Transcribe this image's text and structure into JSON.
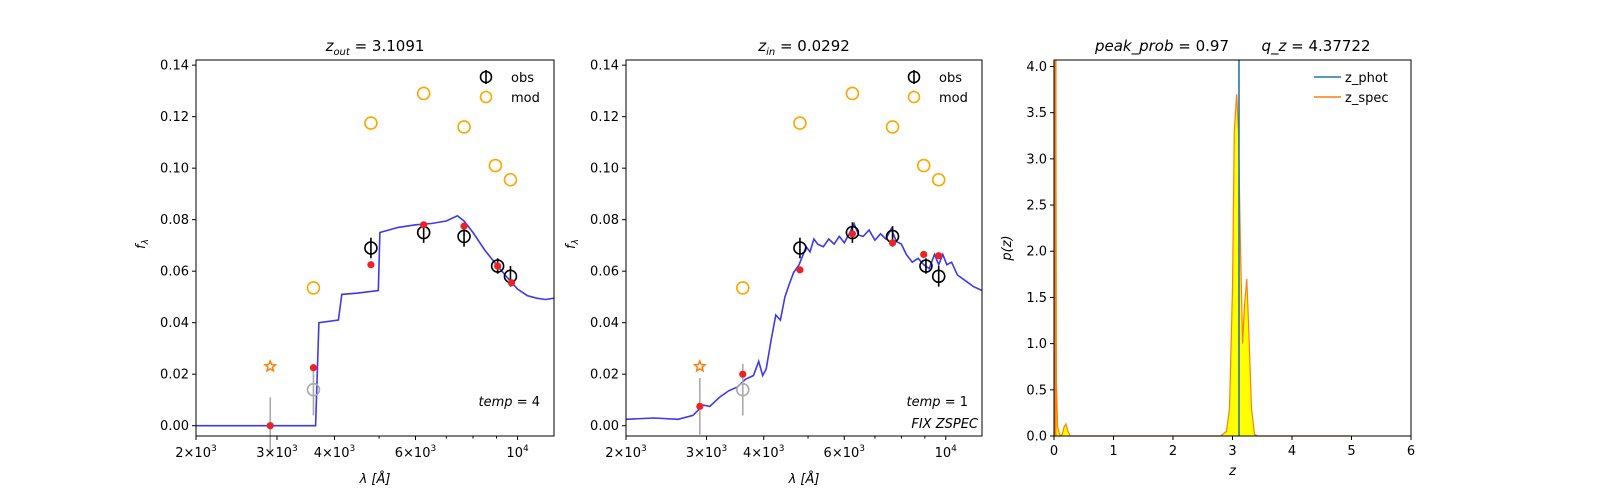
{
  "chart_data": [
    {
      "type": "scatter",
      "title": "z_out = 3.1091",
      "title_main": "z",
      "title_sub": "out",
      "title_rest": " = 3.1091",
      "xlabel": "λ [Å]",
      "ylabel": "f_λ",
      "ylabel_main": "f",
      "ylabel_sub": "λ",
      "xscale": "log",
      "xlim": [
        2000,
        12000
      ],
      "ylim": [
        -0.004,
        0.142
      ],
      "grid": false,
      "legend_position": "top-right",
      "legend": [
        {
          "label": "obs",
          "marker": "open-circle-errorbar",
          "color": "#000000"
        },
        {
          "label": "mod",
          "marker": "open-circle",
          "color": "#ffa500"
        }
      ],
      "x_tick_labels": [
        {
          "value": 2000,
          "base": "2×10",
          "exp": "3"
        },
        {
          "value": 3000,
          "base": "3×10",
          "exp": "3"
        },
        {
          "value": 4000,
          "base": "4×10",
          "exp": "3"
        },
        {
          "value": 6000,
          "base": "6×10",
          "exp": "3"
        },
        {
          "value": 10000,
          "base": "10",
          "exp": "4"
        }
      ],
      "y_ticks": [
        0.0,
        0.02,
        0.04,
        0.06,
        0.08,
        0.1,
        0.12,
        0.14
      ],
      "y_tick_labels": [
        "0.00",
        "0.02",
        "0.04",
        "0.06",
        "0.08",
        "0.10",
        "0.12",
        "0.14"
      ],
      "annotation": "temp = 4",
      "annotation_main": "temp",
      "annotation_rest": " = 4",
      "obs": [
        {
          "x": 4800,
          "y": 0.069,
          "err": 0.004
        },
        {
          "x": 6250,
          "y": 0.075,
          "err": 0.004
        },
        {
          "x": 7650,
          "y": 0.0735,
          "err": 0.004
        },
        {
          "x": 9050,
          "y": 0.062,
          "err": 0.003
        },
        {
          "x": 9650,
          "y": 0.058,
          "err": 0.004
        }
      ],
      "obs_gray": [
        {
          "x": 3600,
          "y": 0.014,
          "err": 0.01
        }
      ],
      "gray_errorbar": [
        {
          "x": 2900,
          "y": 0.0,
          "err": 0.011
        }
      ],
      "mod": [
        {
          "x": 3600,
          "y": 0.0535
        },
        {
          "x": 4800,
          "y": 0.1175
        },
        {
          "x": 6250,
          "y": 0.129
        },
        {
          "x": 7650,
          "y": 0.116
        },
        {
          "x": 8950,
          "y": 0.101
        },
        {
          "x": 9650,
          "y": 0.0955
        }
      ],
      "star": [
        {
          "x": 2900,
          "y": 0.023
        }
      ],
      "red": [
        {
          "x": 2900,
          "y": 0.0
        },
        {
          "x": 3600,
          "y": 0.0225
        },
        {
          "x": 4800,
          "y": 0.0625
        },
        {
          "x": 6250,
          "y": 0.078
        },
        {
          "x": 7650,
          "y": 0.0775
        },
        {
          "x": 9050,
          "y": 0.062
        },
        {
          "x": 9700,
          "y": 0.0555
        }
      ],
      "sed": [
        [
          2000,
          0.0
        ],
        [
          3640,
          0.0
        ],
        [
          3700,
          0.04
        ],
        [
          4080,
          0.041
        ],
        [
          4150,
          0.051
        ],
        [
          4500,
          0.0515
        ],
        [
          4980,
          0.0525
        ],
        [
          5020,
          0.075
        ],
        [
          5500,
          0.077
        ],
        [
          6000,
          0.078
        ],
        [
          6500,
          0.0785
        ],
        [
          7000,
          0.0795
        ],
        [
          7400,
          0.0815
        ],
        [
          7650,
          0.0795
        ],
        [
          8000,
          0.075
        ],
        [
          8500,
          0.068
        ],
        [
          9000,
          0.0625
        ],
        [
          9500,
          0.0575
        ],
        [
          10000,
          0.053
        ],
        [
          10500,
          0.0505
        ],
        [
          11000,
          0.0495
        ],
        [
          11500,
          0.049
        ],
        [
          12000,
          0.0495
        ]
      ]
    },
    {
      "type": "scatter",
      "title": "z_in = 0.0292",
      "title_main": "z",
      "title_sub": "in",
      "title_rest": " = 0.0292",
      "xlabel": "λ [Å]",
      "ylabel": "f_λ",
      "ylabel_main": "f",
      "ylabel_sub": "λ",
      "xscale": "log",
      "xlim": [
        2000,
        12000
      ],
      "ylim": [
        -0.004,
        0.142
      ],
      "grid": false,
      "legend_position": "top-right",
      "legend": [
        {
          "label": "obs",
          "marker": "open-circle-errorbar",
          "color": "#000000"
        },
        {
          "label": "mod",
          "marker": "open-circle",
          "color": "#ffa500"
        }
      ],
      "x_tick_labels": [
        {
          "value": 2000,
          "base": "2×10",
          "exp": "3"
        },
        {
          "value": 3000,
          "base": "3×10",
          "exp": "3"
        },
        {
          "value": 4000,
          "base": "4×10",
          "exp": "3"
        },
        {
          "value": 6000,
          "base": "6×10",
          "exp": "3"
        },
        {
          "value": 10000,
          "base": "10",
          "exp": "4"
        }
      ],
      "y_ticks": [
        0.0,
        0.02,
        0.04,
        0.06,
        0.08,
        0.1,
        0.12,
        0.14
      ],
      "y_tick_labels": [
        "0.00",
        "0.02",
        "0.04",
        "0.06",
        "0.08",
        "0.10",
        "0.12",
        "0.14"
      ],
      "annotation": "temp = 1",
      "annotation_main": "temp",
      "annotation_rest": " = 1",
      "annotation2": "FIX ZSPEC",
      "obs": [
        {
          "x": 4800,
          "y": 0.069,
          "err": 0.004
        },
        {
          "x": 6250,
          "y": 0.075,
          "err": 0.004
        },
        {
          "x": 7650,
          "y": 0.0735,
          "err": 0.004
        },
        {
          "x": 9050,
          "y": 0.062,
          "err": 0.003
        },
        {
          "x": 9650,
          "y": 0.058,
          "err": 0.004
        }
      ],
      "obs_gray": [
        {
          "x": 3600,
          "y": 0.014,
          "err": 0.01
        }
      ],
      "gray_errorbar": [
        {
          "x": 2900,
          "y": 0.0075,
          "err": 0.011
        }
      ],
      "mod": [
        {
          "x": 3600,
          "y": 0.0535
        },
        {
          "x": 4800,
          "y": 0.1175
        },
        {
          "x": 6250,
          "y": 0.129
        },
        {
          "x": 7650,
          "y": 0.116
        },
        {
          "x": 8950,
          "y": 0.101
        },
        {
          "x": 9650,
          "y": 0.0955
        }
      ],
      "star": [
        {
          "x": 2900,
          "y": 0.023
        }
      ],
      "red": [
        {
          "x": 2900,
          "y": 0.0075
        },
        {
          "x": 3600,
          "y": 0.02
        },
        {
          "x": 4800,
          "y": 0.0605
        },
        {
          "x": 6250,
          "y": 0.0745
        },
        {
          "x": 7650,
          "y": 0.071
        },
        {
          "x": 8950,
          "y": 0.0665
        },
        {
          "x": 9650,
          "y": 0.066
        }
      ],
      "sed": [
        [
          2000,
          0.0025
        ],
        [
          2300,
          0.003
        ],
        [
          2600,
          0.0025
        ],
        [
          2800,
          0.004
        ],
        [
          2950,
          0.008
        ],
        [
          3050,
          0.0075
        ],
        [
          3200,
          0.011
        ],
        [
          3350,
          0.0135
        ],
        [
          3500,
          0.015
        ],
        [
          3650,
          0.018
        ],
        [
          3800,
          0.0195
        ],
        [
          3900,
          0.025
        ],
        [
          3980,
          0.0195
        ],
        [
          4050,
          0.022
        ],
        [
          4150,
          0.033
        ],
        [
          4250,
          0.043
        ],
        [
          4350,
          0.041
        ],
        [
          4450,
          0.05
        ],
        [
          4550,
          0.055
        ],
        [
          4650,
          0.0595
        ],
        [
          4780,
          0.0625
        ],
        [
          4880,
          0.0665
        ],
        [
          4950,
          0.0695
        ],
        [
          5050,
          0.0675
        ],
        [
          5150,
          0.0725
        ],
        [
          5250,
          0.0705
        ],
        [
          5400,
          0.0695
        ],
        [
          5550,
          0.0725
        ],
        [
          5700,
          0.0705
        ],
        [
          5850,
          0.0735
        ],
        [
          6000,
          0.071
        ],
        [
          6150,
          0.0745
        ],
        [
          6300,
          0.0785
        ],
        [
          6450,
          0.074
        ],
        [
          6600,
          0.0735
        ],
        [
          6800,
          0.076
        ],
        [
          7000,
          0.072
        ],
        [
          7200,
          0.0745
        ],
        [
          7400,
          0.0725
        ],
        [
          7600,
          0.0765
        ],
        [
          7800,
          0.0715
        ],
        [
          8000,
          0.0705
        ],
        [
          8200,
          0.0665
        ],
        [
          8450,
          0.0635
        ],
        [
          8700,
          0.065
        ],
        [
          8950,
          0.0625
        ],
        [
          9200,
          0.061
        ],
        [
          9450,
          0.0665
        ],
        [
          9650,
          0.0625
        ],
        [
          9850,
          0.0665
        ],
        [
          10050,
          0.0625
        ],
        [
          10300,
          0.0635
        ],
        [
          10600,
          0.0585
        ],
        [
          11000,
          0.0565
        ],
        [
          11500,
          0.054
        ],
        [
          12000,
          0.0525
        ]
      ]
    },
    {
      "type": "area",
      "title": "peak_prob = 0.97      q_z = 4.37722",
      "title_part1_main": "peak_prob",
      "title_part1_rest": " = 0.97",
      "title_part2_main": "q_z",
      "title_part2_rest": " = 4.37722",
      "xlabel": "z",
      "ylabel": "p(z)",
      "xscale": "linear",
      "xlim": [
        0,
        6
      ],
      "ylim": [
        0,
        4.07
      ],
      "grid": false,
      "legend_position": "top-right",
      "legend": [
        {
          "label": "z_phot",
          "color": "#1f77b4"
        },
        {
          "label": "z_spec",
          "color": "#ff7f0e"
        }
      ],
      "x_ticks": [
        0,
        1,
        2,
        3,
        4,
        5,
        6
      ],
      "x_tick_labels": [
        "0",
        "1",
        "2",
        "3",
        "4",
        "5",
        "6"
      ],
      "y_ticks": [
        0,
        0.5,
        1.0,
        1.5,
        2.0,
        2.5,
        3.0,
        3.5,
        4.0
      ],
      "y_tick_labels": [
        "0.0",
        "0.5",
        "1.0",
        "1.5",
        "2.0",
        "2.5",
        "3.0",
        "3.5",
        "4.0"
      ],
      "z_phot": 3.1091,
      "z_spec": 0.0292,
      "fill_color": "#ffff00",
      "pz": [
        [
          0.0,
          0.0
        ],
        [
          0.01,
          0.0
        ],
        [
          0.015,
          4.05
        ],
        [
          0.03,
          4.05
        ],
        [
          0.04,
          0.6
        ],
        [
          0.06,
          0.1
        ],
        [
          0.1,
          0.0
        ],
        [
          0.14,
          0.02
        ],
        [
          0.17,
          0.1
        ],
        [
          0.2,
          0.13
        ],
        [
          0.23,
          0.06
        ],
        [
          0.27,
          0.0
        ],
        [
          2.8,
          0.0
        ],
        [
          2.9,
          0.05
        ],
        [
          2.95,
          0.3
        ],
        [
          3.0,
          1.6
        ],
        [
          3.03,
          3.3
        ],
        [
          3.07,
          3.7
        ],
        [
          3.1,
          3.3
        ],
        [
          3.13,
          2.2
        ],
        [
          3.17,
          1.0
        ],
        [
          3.2,
          1.4
        ],
        [
          3.24,
          1.7
        ],
        [
          3.27,
          1.2
        ],
        [
          3.32,
          0.3
        ],
        [
          3.37,
          0.02
        ],
        [
          3.42,
          0.0
        ],
        [
          5.0,
          0.0
        ]
      ]
    }
  ]
}
